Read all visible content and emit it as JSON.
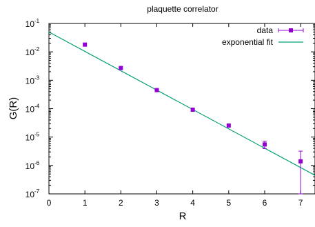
{
  "chart_data": {
    "type": "scatter",
    "title": "plaquette correlator",
    "xlabel": "R",
    "ylabel": "G(R)",
    "xlim": [
      0,
      7.4
    ],
    "ylim": [
      1e-07,
      0.1
    ],
    "y_scale": "log",
    "x_ticks": [
      "0",
      "1",
      "2",
      "3",
      "4",
      "5",
      "6",
      "7"
    ],
    "y_ticks": [
      {
        "base": "10",
        "exp": "-7",
        "value": 1e-07
      },
      {
        "base": "10",
        "exp": "-6",
        "value": 1e-06
      },
      {
        "base": "10",
        "exp": "-5",
        "value": 1e-05
      },
      {
        "base": "10",
        "exp": "-4",
        "value": 0.0001
      },
      {
        "base": "10",
        "exp": "-3",
        "value": 0.001
      },
      {
        "base": "10",
        "exp": "-2",
        "value": 0.01
      },
      {
        "base": "10",
        "exp": "-1",
        "value": 0.1
      }
    ],
    "grid": false,
    "legend_position": "top-right",
    "series": [
      {
        "name": "data",
        "kind": "points_with_errorbars",
        "color": "#9400d3",
        "points": [
          {
            "x": 1,
            "y": 0.018
          },
          {
            "x": 2,
            "y": 0.0027
          },
          {
            "x": 3,
            "y": 0.00045
          },
          {
            "x": 4,
            "y": 9.2e-05
          },
          {
            "x": 5,
            "y": 2.55e-05
          },
          {
            "x": 6,
            "y": 5.5e-06,
            "y_low": 3.9e-06,
            "y_high": 7.2e-06
          },
          {
            "x": 7,
            "y": 1.4e-06,
            "y_low": 1e-07,
            "y_high": 3.2e-06
          }
        ]
      },
      {
        "name": "exponential fit",
        "kind": "line",
        "color": "#009e73",
        "from": {
          "x": 0,
          "y": 0.05
        },
        "to": {
          "x": 7.4,
          "y": 4.5e-07
        }
      }
    ]
  }
}
